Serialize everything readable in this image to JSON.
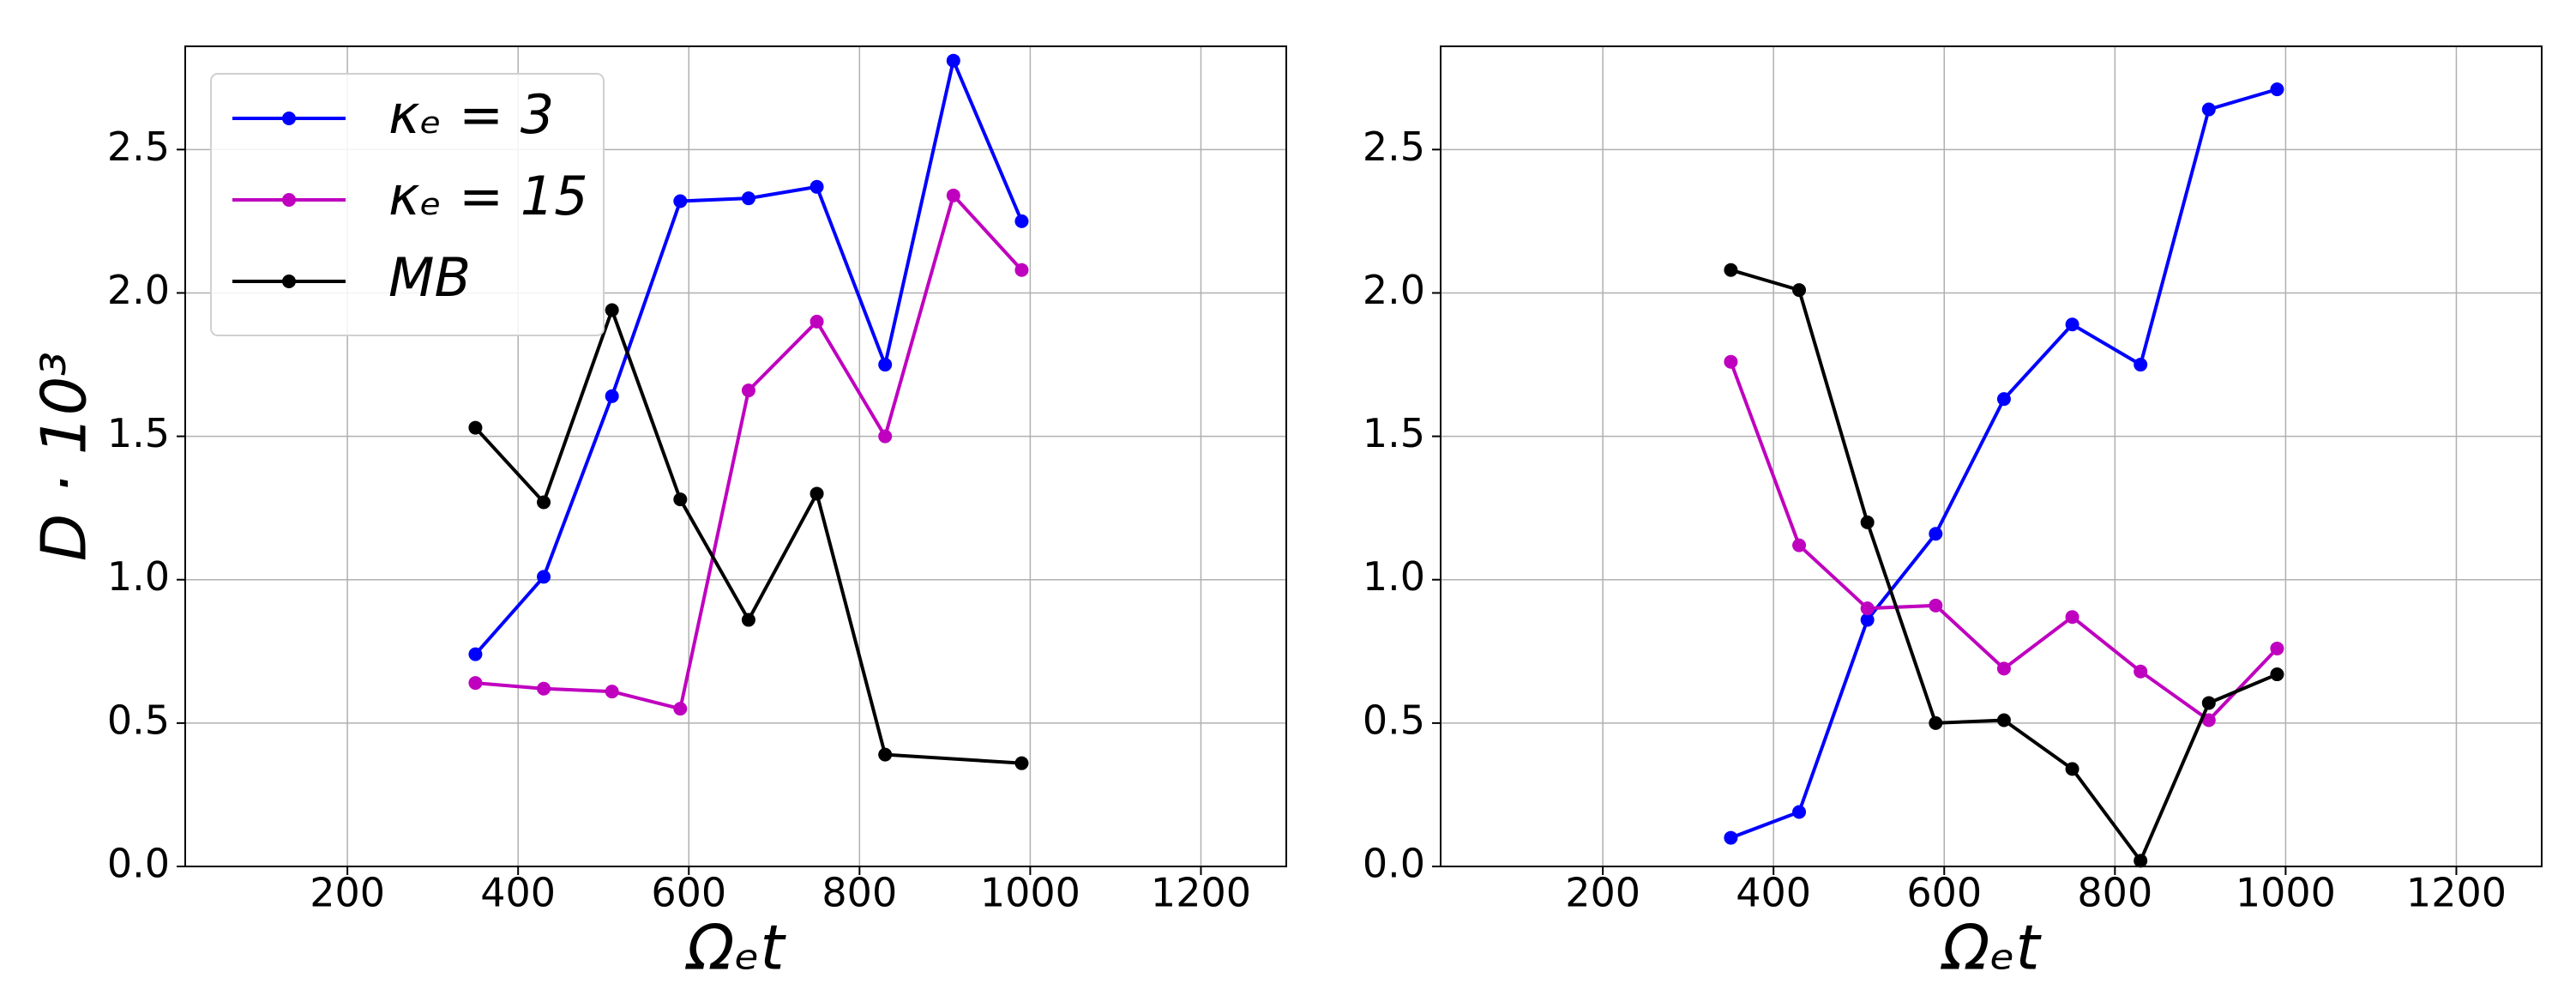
{
  "chart_data": [
    {
      "type": "line",
      "xlabel": "Ωₑt",
      "ylabel": "D · 10³",
      "xlim": [
        10,
        1300
      ],
      "ylim": [
        0,
        2.86
      ],
      "xticks": [
        200,
        400,
        600,
        800,
        1000,
        1200
      ],
      "yticks": [
        {
          "value": 0,
          "label": "0.0"
        },
        0.5,
        {
          "value": 1,
          "label": "1.0"
        },
        1.5,
        {
          "value": 2,
          "label": "2.0"
        },
        2.5
      ],
      "grid": true,
      "legend": "upper left",
      "series": [
        {
          "name": "κₑ = 3",
          "color": "#0000ff",
          "x": [
            350,
            430,
            510,
            590,
            670,
            750,
            830,
            910,
            990
          ],
          "values": [
            0.74,
            1.01,
            1.64,
            2.32,
            2.33,
            2.37,
            1.75,
            2.81,
            2.25
          ]
        },
        {
          "name": "κₑ = 15",
          "color": "#bf00bf",
          "x": [
            350,
            430,
            510,
            590,
            670,
            750,
            830,
            910,
            990
          ],
          "values": [
            0.64,
            0.62,
            0.61,
            0.55,
            1.66,
            1.9,
            1.5,
            2.34,
            2.08
          ]
        },
        {
          "name": "MB",
          "color": "#000000",
          "x": [
            350,
            430,
            510,
            590,
            670,
            750,
            830,
            990
          ],
          "values": [
            1.53,
            1.27,
            1.94,
            1.28,
            0.86,
            1.3,
            0.39,
            0.36
          ]
        }
      ]
    },
    {
      "type": "line",
      "xlabel": "Ωₑt",
      "xlim": [
        10,
        1300
      ],
      "ylim": [
        0,
        2.86
      ],
      "xticks": [
        200,
        400,
        600,
        800,
        1000,
        1200
      ],
      "yticks": [
        {
          "value": 0,
          "label": "0.0"
        },
        0.5,
        {
          "value": 1,
          "label": "1.0"
        },
        1.5,
        {
          "value": 2,
          "label": "2.0"
        },
        2.5
      ],
      "grid": true,
      "series": [
        {
          "color": "#0000ff",
          "x": [
            350,
            430,
            510,
            590,
            670,
            750,
            830,
            910,
            990
          ],
          "values": [
            0.1,
            0.19,
            0.86,
            1.16,
            1.63,
            1.89,
            1.75,
            2.64,
            2.71
          ]
        },
        {
          "color": "#bf00bf",
          "x": [
            350,
            430,
            510,
            590,
            670,
            750,
            830,
            910,
            990
          ],
          "values": [
            1.76,
            1.12,
            0.9,
            0.91,
            0.69,
            0.87,
            0.68,
            0.51,
            0.76
          ]
        },
        {
          "color": "#000000",
          "x": [
            350,
            430,
            510,
            590,
            670,
            750,
            830,
            910,
            990
          ],
          "values": [
            2.08,
            2.01,
            1.2,
            0.5,
            0.51,
            0.34,
            0.02,
            0.57,
            0.67
          ]
        }
      ]
    }
  ]
}
